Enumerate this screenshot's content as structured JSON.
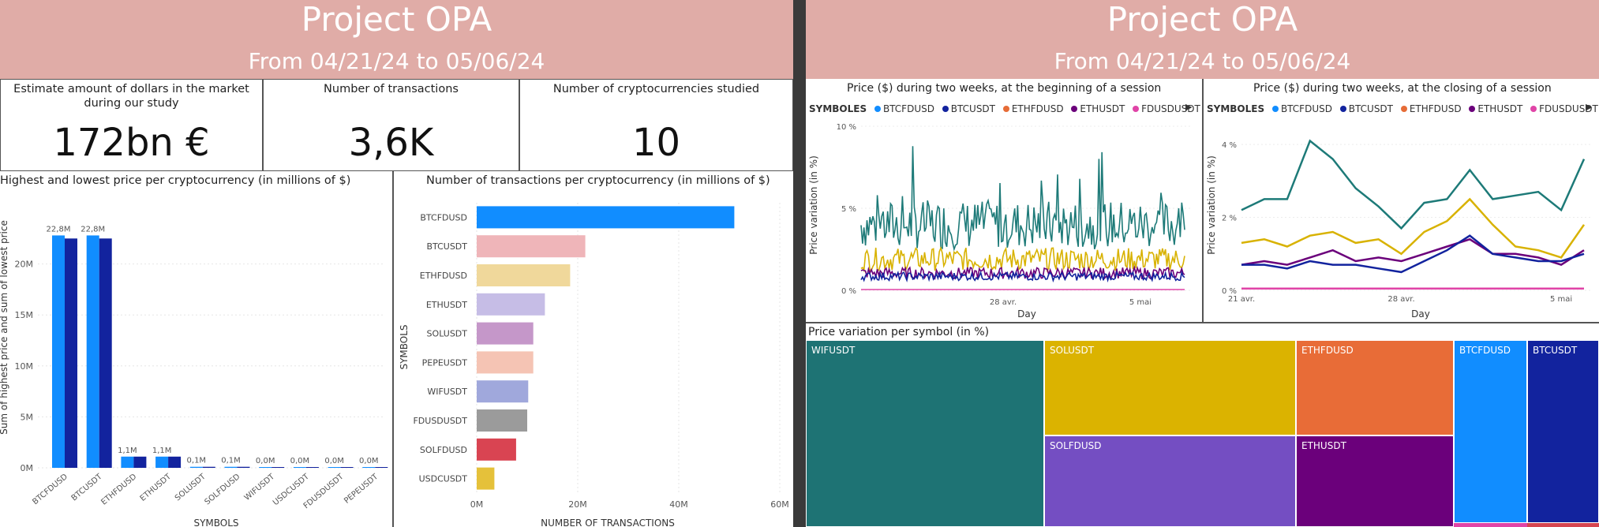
{
  "left": {
    "title": "Project OPA",
    "subtitle": "From 04/21/24 to 05/06/24",
    "kpis": [
      {
        "label": "Estimate amount of dollars in the market during our study",
        "value": "172bn €"
      },
      {
        "label": "Number of transactions",
        "value": "3,6K"
      },
      {
        "label": "Number of cryptocurrencies studied",
        "value": "10"
      }
    ],
    "price_chart": {
      "title": "Highest and lowest price per cryptocurrency (in millions of $)",
      "ylabel": "Sum of highest price and sum of lowest price",
      "xlabel": "SYMBOLS",
      "type": "bar",
      "ylim": [
        0,
        25
      ],
      "yticks": [
        "0M",
        "5M",
        "10M",
        "15M",
        "20M"
      ],
      "colors": {
        "highest": "#118dff",
        "lowest": "#12239e"
      },
      "categories": [
        "BTCFDUSD",
        "BTCUSDT",
        "ETHFDUSD",
        "ETHUSDT",
        "SOLUSDT",
        "SOLFDUSD",
        "WIFUSDT",
        "USDCUSDT",
        "FDUSDUSDT",
        "PEPEUSDT"
      ],
      "highest": [
        22.8,
        22.8,
        1.1,
        1.1,
        0.1,
        0.1,
        0.0,
        0.0,
        0.0,
        0.0
      ],
      "lowest": [
        22.5,
        22.5,
        1.1,
        1.1,
        0.1,
        0.1,
        0.0,
        0.0,
        0.0,
        0.0
      ],
      "labels": [
        "22,8M",
        "22,8M",
        "1,1M",
        "1,1M",
        "0,1M",
        "0,1M",
        "0,0M",
        "0,0M",
        "0,0M",
        "0,0M"
      ]
    },
    "tx_chart": {
      "title": "Number of transactions per cryptocurrency (in millions of $)",
      "ylabel": "SYMBOLS",
      "xlabel": "NUMBER OF TRANSACTIONS",
      "type": "bar",
      "xlim": [
        0,
        60
      ],
      "xticks": [
        "0M",
        "20M",
        "40M",
        "60M"
      ],
      "categories": [
        "BTCFDUSD",
        "BTCUSDT",
        "ETHFDUSD",
        "ETHUSDT",
        "SOLUSDT",
        "PEPEUSDT",
        "WIFUSDT",
        "FDUSDUSDT",
        "SOLFDUSD",
        "USDCUSDT"
      ],
      "values": [
        51,
        21.5,
        18.5,
        13.5,
        11.2,
        11.2,
        10.2,
        10,
        7.8,
        3.5
      ],
      "colors": [
        "#118dff",
        "#efb5b9",
        "#f0d89b",
        "#c6bde6",
        "#c597c9",
        "#f5c4b4",
        "#a0a8dc",
        "#9b9b9b",
        "#d94452",
        "#e5c13a"
      ]
    }
  },
  "right": {
    "title": "Project OPA",
    "subtitle": "From  04/21/24 to 05/06/24",
    "legend_title": "SYMBOLES",
    "legend": [
      {
        "name": "BTCFDUSD",
        "color": "#118dff"
      },
      {
        "name": "BTCUSDT",
        "color": "#12239e"
      },
      {
        "name": "ETHFDUSD",
        "color": "#e66c37"
      },
      {
        "name": "ETHUSDT",
        "color": "#6b007b"
      },
      {
        "name": "FDUSDUSDT",
        "color": "#e044a7"
      }
    ],
    "open_chart": {
      "title": "Price ($) during two weeks, at the beginning of a session",
      "ylabel": "Price variation (in %)",
      "xlabel": "Day",
      "type": "line",
      "ylim": [
        0,
        10
      ],
      "yticks": [
        "0 %",
        "5 %",
        "10 %"
      ],
      "xticks": [
        "28 avr.",
        "5 mai"
      ]
    },
    "close_chart": {
      "title": "Price ($) during two weeks, at the closing of a session",
      "ylabel": "Price variation (in %)",
      "xlabel": "Day",
      "type": "line",
      "ylim": [
        0,
        4.5
      ],
      "yticks": [
        "0 %",
        "2 %",
        "4 %"
      ],
      "xticks": [
        "21 avr.",
        "28 avr.",
        "5 mai"
      ],
      "x": [
        "04/21",
        "04/22",
        "04/23",
        "04/24",
        "04/25",
        "04/26",
        "04/27",
        "04/28",
        "04/29",
        "04/30",
        "05/01",
        "05/02",
        "05/03",
        "05/04",
        "05/05",
        "05/06"
      ],
      "series": [
        {
          "color": "#1d7a78",
          "values": [
            2.2,
            2.5,
            2.5,
            4.1,
            3.6,
            2.8,
            2.3,
            1.7,
            2.4,
            2.5,
            3.3,
            2.5,
            2.6,
            2.7,
            2.2,
            3.6
          ]
        },
        {
          "color": "#d8b200",
          "values": [
            1.3,
            1.4,
            1.2,
            1.5,
            1.6,
            1.3,
            1.4,
            1.0,
            1.6,
            1.9,
            2.5,
            1.8,
            1.2,
            1.1,
            0.9,
            1.8
          ]
        },
        {
          "color": "#6b007b",
          "values": [
            0.7,
            0.8,
            0.7,
            0.9,
            1.1,
            0.8,
            0.9,
            0.8,
            1.0,
            1.2,
            1.4,
            1.0,
            1.0,
            0.9,
            0.7,
            1.1
          ]
        },
        {
          "color": "#12239e",
          "values": [
            0.7,
            0.7,
            0.6,
            0.8,
            0.7,
            0.7,
            0.6,
            0.5,
            0.8,
            1.1,
            1.5,
            1.0,
            0.9,
            0.8,
            0.8,
            1.0
          ]
        },
        {
          "color": "#e044a7",
          "values": [
            0.05,
            0.05,
            0.05,
            0.05,
            0.05,
            0.05,
            0.05,
            0.05,
            0.05,
            0.05,
            0.05,
            0.05,
            0.05,
            0.05,
            0.05,
            0.05
          ]
        }
      ]
    },
    "treemap": {
      "title": "Price variation per symbol (in %)",
      "tiles": [
        {
          "name": "WIFUSDT",
          "color": "#1e7374"
        },
        {
          "name": "SOLUSDT",
          "color": "#dbb300"
        },
        {
          "name": "ETHFDUSD",
          "color": "#e86c37"
        },
        {
          "name": "BTCFDUSD",
          "color": "#118dff"
        },
        {
          "name": "BTCUSDT",
          "color": "#12239e"
        },
        {
          "name": "SOLFDUSD",
          "color": "#744ec2"
        },
        {
          "name": "ETHUSDT",
          "color": "#6b007b"
        }
      ]
    }
  }
}
